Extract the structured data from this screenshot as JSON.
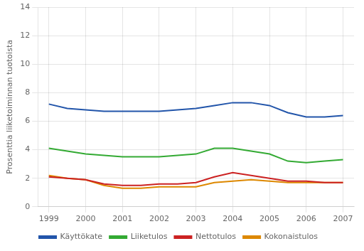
{
  "chart_data": {
    "type": "line",
    "y_label": "Prosenttia liiketoiminnan tuotoista",
    "x": [
      1999,
      1999.5,
      2000,
      2000.5,
      2001,
      2001.5,
      2002,
      2002.5,
      2003,
      2003.5,
      2004,
      2004.5,
      2005,
      2005.5,
      2006,
      2006.5,
      2007
    ],
    "series": [
      {
        "name": "Käyttökate",
        "color": "#2255aa",
        "values": [
          7.2,
          6.9,
          6.8,
          6.7,
          6.7,
          6.7,
          6.7,
          6.8,
          6.9,
          7.1,
          7.3,
          7.3,
          7.1,
          6.6,
          6.3,
          6.3,
          6.4
        ]
      },
      {
        "name": "Liiketulos",
        "color": "#33aa33",
        "values": [
          4.1,
          3.9,
          3.7,
          3.6,
          3.5,
          3.5,
          3.5,
          3.6,
          3.7,
          4.1,
          4.1,
          3.9,
          3.7,
          3.2,
          3.1,
          3.2,
          3.3
        ]
      },
      {
        "name": "Nettotulos",
        "color": "#cc2222",
        "values": [
          2.1,
          2.0,
          1.9,
          1.6,
          1.5,
          1.5,
          1.6,
          1.6,
          1.7,
          2.1,
          2.4,
          2.2,
          2.0,
          1.8,
          1.8,
          1.7,
          1.7
        ]
      },
      {
        "name": "Kokonaistulos",
        "color": "#dd8800",
        "values": [
          2.2,
          2.0,
          1.9,
          1.5,
          1.3,
          1.3,
          1.4,
          1.4,
          1.4,
          1.7,
          1.8,
          1.9,
          1.8,
          1.7,
          1.7,
          1.7,
          1.7
        ]
      }
    ],
    "xlim": [
      1998.7,
      2007.3
    ],
    "xticks": [
      1999,
      2000,
      2001,
      2002,
      2003,
      2004,
      2005,
      2006,
      2007
    ],
    "ylim": [
      0,
      14
    ],
    "yticks": [
      0,
      2,
      4,
      6,
      8,
      10,
      12,
      14
    ],
    "grid": true,
    "legend": "bottom"
  }
}
